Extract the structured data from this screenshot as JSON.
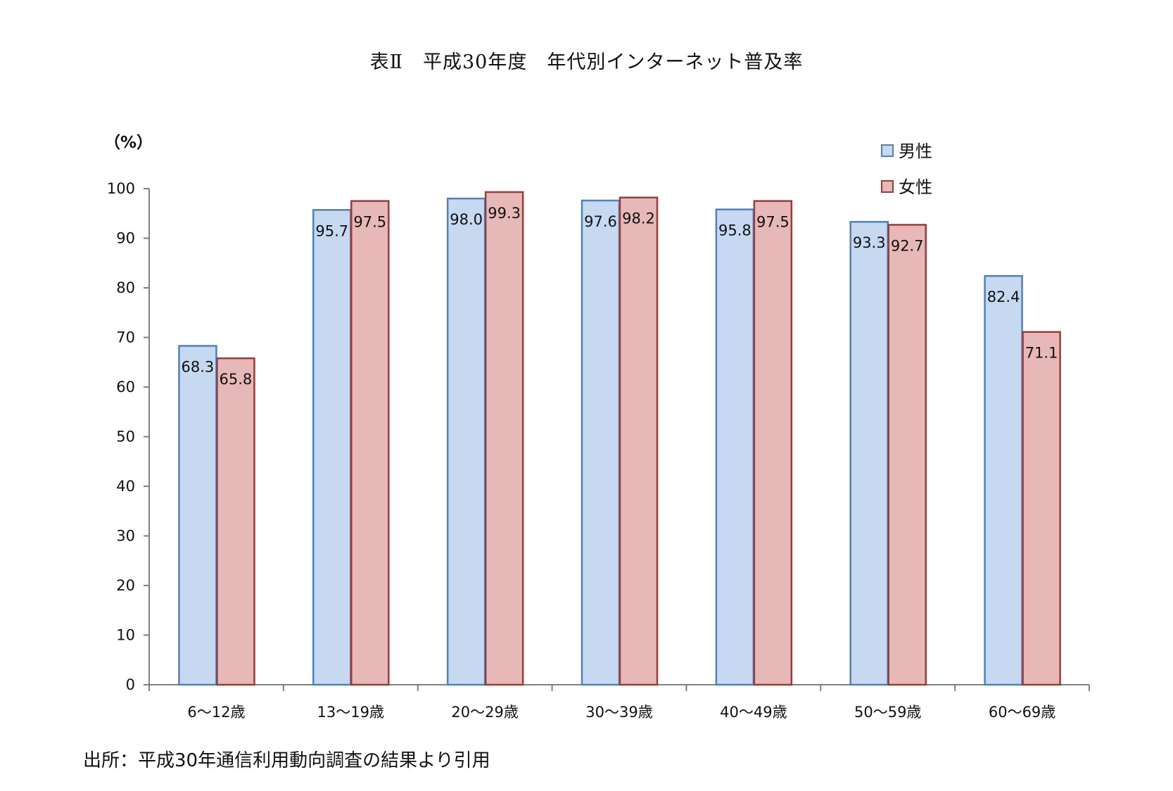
{
  "title": "表Ⅱ　平成30年度　年代別インターネット普及率",
  "source_note": "出所：平成30年通信利用動向調査の結果より引用",
  "colors": {
    "male_fill": "#c6d9f1",
    "male_stroke": "#4f81bd",
    "female_fill": "#e6b9b8",
    "female_stroke": "#9b3b38",
    "axis": "#808080"
  },
  "chart_data": {
    "type": "bar",
    "title": "表Ⅱ　平成30年度　年代別インターネット普及率",
    "ylabel": "（%）",
    "xlabel": "",
    "ylim": [
      0,
      100
    ],
    "yticks": [
      0,
      10,
      20,
      30,
      40,
      50,
      60,
      70,
      80,
      90,
      100
    ],
    "grid": false,
    "legend_position": "top-right",
    "categories": [
      "6～12歳",
      "13～19歳",
      "20～29歳",
      "30～39歳",
      "40～49歳",
      "50～59歳",
      "60～69歳"
    ],
    "series": [
      {
        "name": "男性",
        "values": [
          68.3,
          95.7,
          98.0,
          97.6,
          95.8,
          93.3,
          82.4
        ]
      },
      {
        "name": "女性",
        "values": [
          65.8,
          97.5,
          99.3,
          98.2,
          97.5,
          92.7,
          71.1
        ]
      }
    ],
    "data_labels": [
      [
        "68.3",
        "95.7",
        "98.0",
        "97.6",
        "95.8",
        "93.3",
        "82.4"
      ],
      [
        "65.8",
        "97.5",
        "99.3",
        "98.2",
        "97.5",
        "92.7",
        "71.1"
      ]
    ]
  }
}
